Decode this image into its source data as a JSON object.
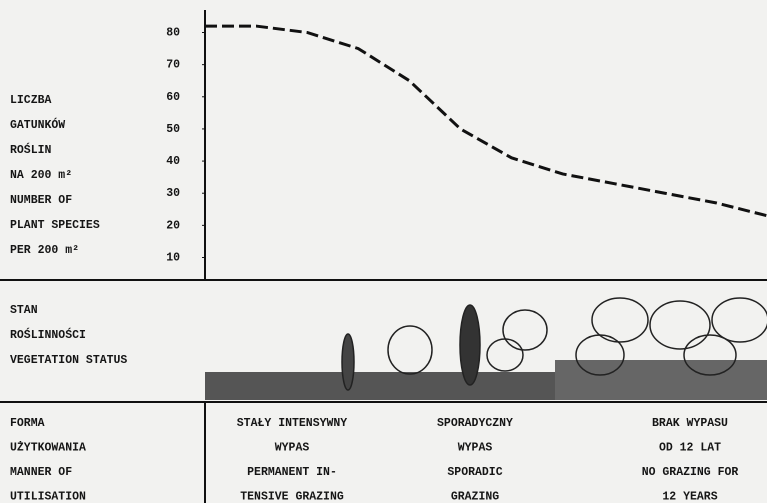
{
  "chart_data": {
    "type": "line",
    "y_label_lines": [
      "LICZBA",
      "GATUNKÓW",
      "ROŚLIN",
      "NA 200 m²",
      "NUMBER OF",
      "PLANT SPECIES",
      "PER 200 m²"
    ],
    "categories": [
      null,
      null,
      null,
      null,
      null,
      null,
      null,
      null,
      null,
      null,
      null,
      null
    ],
    "values": [
      82,
      82,
      80,
      75,
      65,
      50,
      41,
      36,
      33,
      30,
      27,
      23
    ],
    "color": "#111111",
    "ylim": [
      3,
      87
    ],
    "yticks": [
      10,
      20,
      30,
      40,
      50,
      60,
      70,
      80
    ],
    "rows": [
      {
        "label_lines": [
          "STAN",
          "ROŚLINNOŚCI",
          "VEGETATION STATUS"
        ]
      },
      {
        "label_lines": [
          "FORMA",
          "UŻYTKOWANIA",
          "MANNER OF",
          "UTILISATION"
        ]
      }
    ],
    "columns": [
      {
        "lines": [
          "STAŁY INTENSYWNY",
          "WYPAS",
          "PERMANENT IN-",
          "TENSIVE GRAZING"
        ]
      },
      {
        "lines": [
          "SPORADYCZNY",
          "WYPAS",
          "SPORADIC",
          "GRAZING"
        ]
      },
      {
        "lines": [
          "BRAK WYPASU",
          "OD 12 LAT",
          "NO GRAZING FOR",
          "12 YEARS"
        ]
      }
    ]
  }
}
